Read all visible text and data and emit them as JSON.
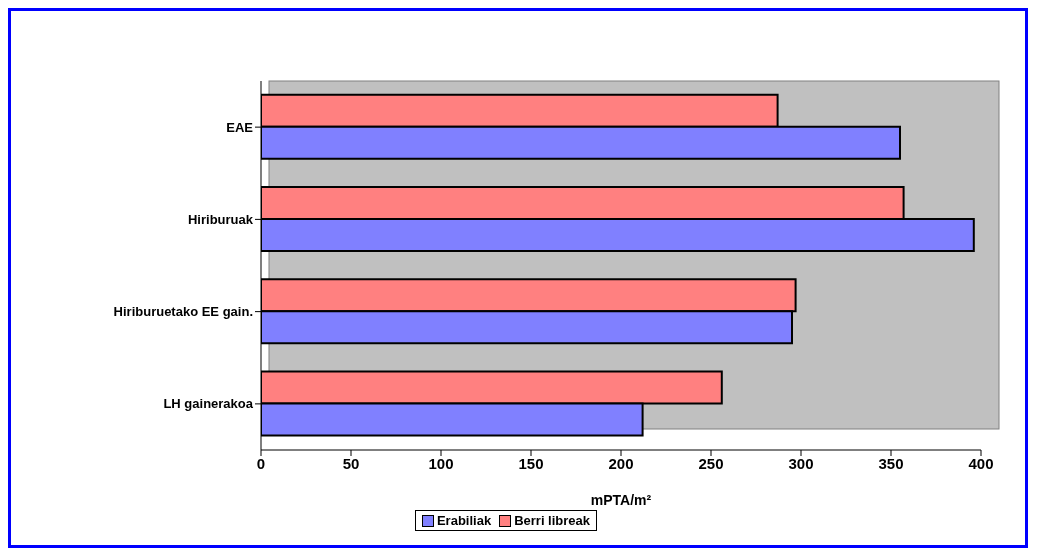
{
  "chart_data": {
    "type": "bar",
    "orientation": "horizontal",
    "xlabel": "mPTA/m²",
    "categories": [
      "EAE",
      "Hiriburuak",
      "Hiriburuetako EE gain.",
      "LH gainerakoa"
    ],
    "series": [
      {
        "name": "Erabiliak",
        "color": "#8080ff",
        "values": [
          355,
          396,
          295,
          212
        ]
      },
      {
        "name": "Berri libreak",
        "color": "#ff8080",
        "values": [
          287,
          357,
          297,
          256
        ]
      }
    ],
    "xlim": [
      0,
      400
    ],
    "xticks": [
      0,
      50,
      100,
      150,
      200,
      250,
      300,
      350,
      400
    ],
    "legend": "bottom"
  }
}
